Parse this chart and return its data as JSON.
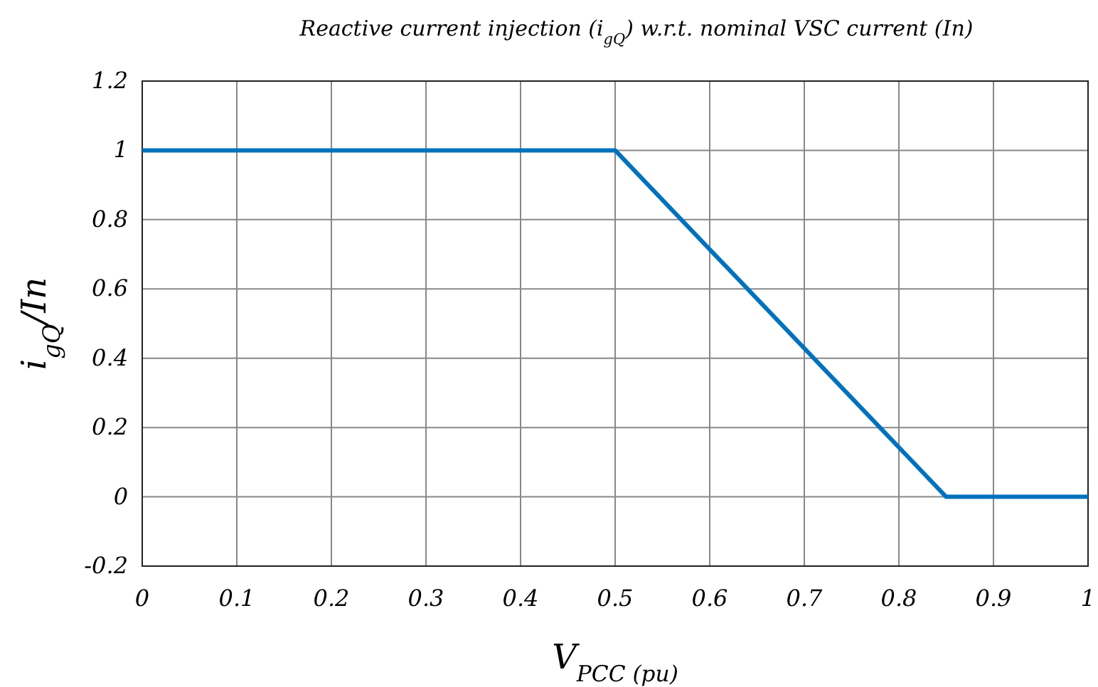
{
  "chart_data": {
    "type": "line",
    "title": "Reactive current injection (i$_{gQ}$) w.r.t. nominal VSC current (In)",
    "xlabel": "V$_{PCC (pu)}$",
    "ylabel": "i$_{gQ}$/In",
    "x": [
      0,
      0.5,
      0.85,
      1
    ],
    "series": [
      {
        "color": "#0072bd",
        "values": [
          1,
          1,
          0,
          0
        ]
      }
    ],
    "xlim": [
      0,
      1
    ],
    "xticks": [
      0,
      0.1,
      0.2,
      0.3,
      0.4,
      0.5,
      0.6,
      0.7,
      0.8,
      0.9,
      1
    ],
    "ylim": [
      -0.2,
      1.2
    ],
    "yticks": [
      -0.2,
      0,
      0.2,
      0.4,
      0.6,
      0.8,
      1,
      1.2
    ],
    "grid": true,
    "marker": "none",
    "line_style": "solid"
  }
}
